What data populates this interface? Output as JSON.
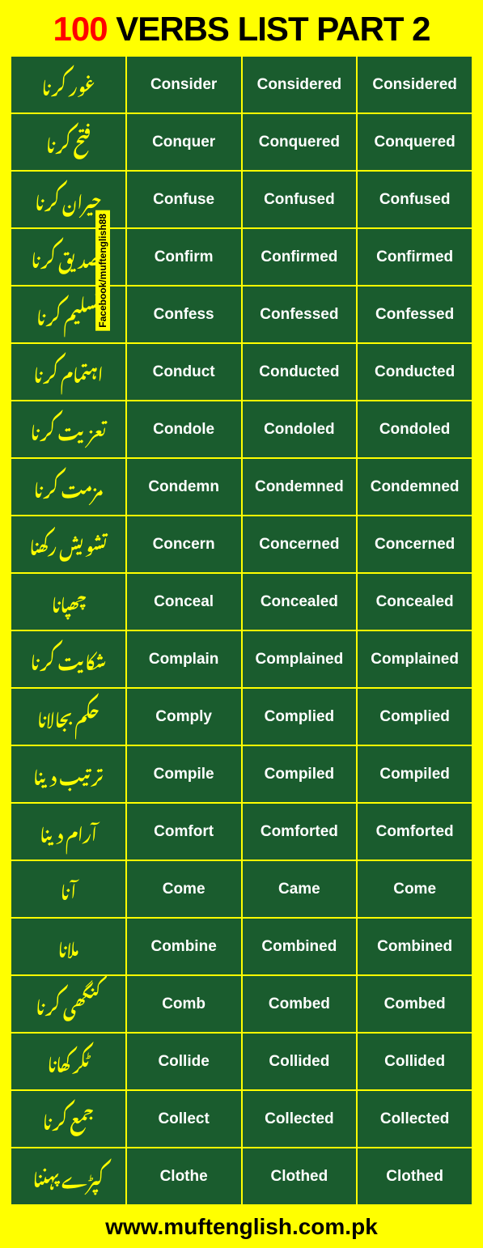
{
  "title": {
    "number": "100",
    "rest": " VERBS LIST PART 2"
  },
  "sidebar": "Facebook/muftenglish88",
  "footer": "www.muftenglish.com.pk",
  "colors": {
    "page_bg": "#ffff00",
    "cell_bg": "#1a5c2e",
    "cell_text": "#ffffff",
    "urdu_text": "#ffff00",
    "title_number": "#ff0000",
    "title_rest": "#000000"
  },
  "table": {
    "columns": [
      "urdu",
      "base",
      "past",
      "participle"
    ],
    "rows": [
      [
        "غور کرنا",
        "Consider",
        "Considered",
        "Considered"
      ],
      [
        "فتح کرنا",
        "Conquer",
        "Conquered",
        "Conquered"
      ],
      [
        "حیران کرنا",
        "Confuse",
        "Confused",
        "Confused"
      ],
      [
        "تصدیق کرنا",
        "Confirm",
        "Confirmed",
        "Confirmed"
      ],
      [
        "تسلیم کرنا",
        "Confess",
        "Confessed",
        "Confessed"
      ],
      [
        "اہتمام کرنا",
        "Conduct",
        "Conducted",
        "Conducted"
      ],
      [
        "تعزیت کرنا",
        "Condole",
        "Condoled",
        "Condoled"
      ],
      [
        "مزمت کرنا",
        "Condemn",
        "Condemned",
        "Condemned"
      ],
      [
        "تشویش رکھنا",
        "Concern",
        "Concerned",
        "Concerned"
      ],
      [
        "چھپانا",
        "Conceal",
        "Concealed",
        "Concealed"
      ],
      [
        "شکایت کرنا",
        "Complain",
        "Complained",
        "Complained"
      ],
      [
        "حکم بجالانا",
        "Comply",
        "Complied",
        "Complied"
      ],
      [
        "ترتیب دینا",
        "Compile",
        "Compiled",
        "Compiled"
      ],
      [
        "آرام دینا",
        "Comfort",
        "Comforted",
        "Comforted"
      ],
      [
        "آنا",
        "Come",
        "Came",
        "Come"
      ],
      [
        "ملانا",
        "Combine",
        "Combined",
        "Combined"
      ],
      [
        "کنگھی کرنا",
        "Comb",
        "Combed",
        "Combed"
      ],
      [
        "ٹکر کھانا",
        "Collide",
        "Collided",
        "Collided"
      ],
      [
        "جمع کرنا",
        "Collect",
        "Collected",
        "Collected"
      ],
      [
        "کپڑے پہننا",
        "Clothe",
        "Clothed",
        "Clothed"
      ]
    ]
  }
}
